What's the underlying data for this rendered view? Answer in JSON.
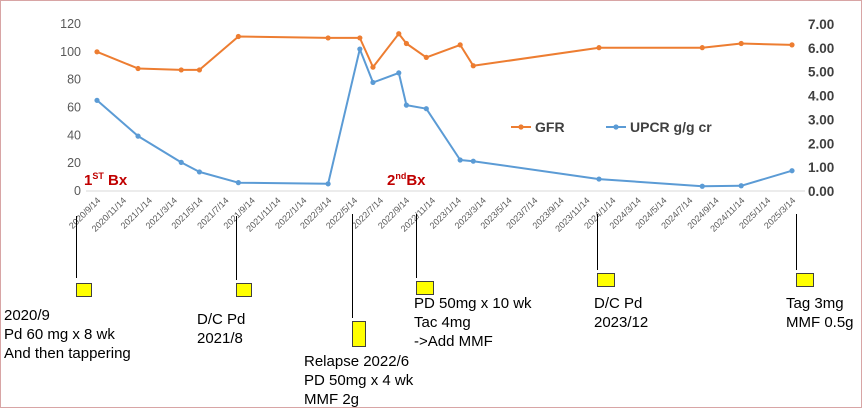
{
  "chart_data": {
    "type": "line",
    "x": [
      "2020/9/14",
      "2020/11/14",
      "2021/1/14",
      "2021/3/14",
      "2021/5/14",
      "2021/7/14",
      "2021/9/14",
      "2021/11/14",
      "2022/1/14",
      "2022/3/14",
      "2022/5/14",
      "2022/7/14",
      "2022/9/14",
      "2022/11/14",
      "2023/1/14",
      "2023/3/14",
      "2023/5/14",
      "2023/7/14",
      "2023/9/14",
      "2023/11/14",
      "2024/1/14",
      "2024/3/14",
      "2024/5/14",
      "2024/7/14",
      "2024/9/14",
      "2024/11/14",
      "2025/1/14",
      "2025/3/14"
    ],
    "y_left": {
      "range": [
        0,
        120
      ],
      "ticks": [
        "0",
        "20",
        "40",
        "60",
        "80",
        "100",
        "120"
      ]
    },
    "y_right": {
      "range": [
        0,
        7
      ],
      "ticks": [
        "0.00",
        "1.00",
        "2.00",
        "3.00",
        "4.00",
        "5.00",
        "6.00",
        "7.00"
      ]
    },
    "series": [
      {
        "name": "GFR",
        "axis": "left",
        "color": "#ed7d31",
        "points": [
          {
            "x": "2020/9/14",
            "y": 100
          },
          {
            "x": "2020/12/20",
            "y": 88
          },
          {
            "x": "2021/4/1",
            "y": 87
          },
          {
            "x": "2021/5/14",
            "y": 87
          },
          {
            "x": "2021/8/14",
            "y": 111
          },
          {
            "x": "2022/3/14",
            "y": 110
          },
          {
            "x": "2022/5/28",
            "y": 110
          },
          {
            "x": "2022/6/28",
            "y": 89
          },
          {
            "x": "2022/8/28",
            "y": 113
          },
          {
            "x": "2022/9/15",
            "y": 106
          },
          {
            "x": "2022/11/1",
            "y": 96
          },
          {
            "x": "2023/1/20",
            "y": 105
          },
          {
            "x": "2023/2/20",
            "y": 90
          },
          {
            "x": "2023/12/14",
            "y": 103
          },
          {
            "x": "2024/8/14",
            "y": 103
          },
          {
            "x": "2024/11/14",
            "y": 106
          },
          {
            "x": "2025/3/14",
            "y": 105
          }
        ]
      },
      {
        "name": "UPCR g/g cr",
        "axis": "right",
        "color": "#5b9bd5",
        "points": [
          {
            "x": "2020/9/14",
            "y": 3.8
          },
          {
            "x": "2020/12/20",
            "y": 2.3
          },
          {
            "x": "2021/4/1",
            "y": 1.2
          },
          {
            "x": "2021/5/14",
            "y": 0.8
          },
          {
            "x": "2021/8/14",
            "y": 0.35
          },
          {
            "x": "2022/3/14",
            "y": 0.3
          },
          {
            "x": "2022/5/28",
            "y": 5.95
          },
          {
            "x": "2022/6/28",
            "y": 4.55
          },
          {
            "x": "2022/8/28",
            "y": 4.95
          },
          {
            "x": "2022/9/15",
            "y": 3.6
          },
          {
            "x": "2022/11/1",
            "y": 3.45
          },
          {
            "x": "2023/1/20",
            "y": 1.3
          },
          {
            "x": "2023/2/20",
            "y": 1.25
          },
          {
            "x": "2023/12/14",
            "y": 0.5
          },
          {
            "x": "2024/8/14",
            "y": 0.2
          },
          {
            "x": "2024/11/14",
            "y": 0.22
          },
          {
            "x": "2025/3/14",
            "y": 0.85
          }
        ]
      }
    ],
    "legend_position": "right, inside plot",
    "grid": false
  },
  "biopsy_labels": [
    {
      "main": "1",
      "sup": "ST",
      "rest": " Bx"
    },
    {
      "main": "2",
      "sup": "nd",
      "rest": "Bx"
    }
  ],
  "annotations": [
    {
      "lines": [
        "2020/9",
        "Pd 60 mg x 8 wk",
        "And then tappering"
      ]
    },
    {
      "lines": [
        "D/C Pd",
        "2021/8"
      ]
    },
    {
      "lines": [
        "Relapse 2022/6",
        "PD 50mg x 4 wk",
        "MMF 2g"
      ]
    },
    {
      "lines": [
        "PD 50mg x 10 wk",
        "Tac 4mg",
        "->Add MMF"
      ]
    },
    {
      "lines": [
        "D/C Pd",
        "2023/12"
      ]
    },
    {
      "lines": [
        "Tag 3mg",
        "MMF 0.5g"
      ]
    }
  ]
}
